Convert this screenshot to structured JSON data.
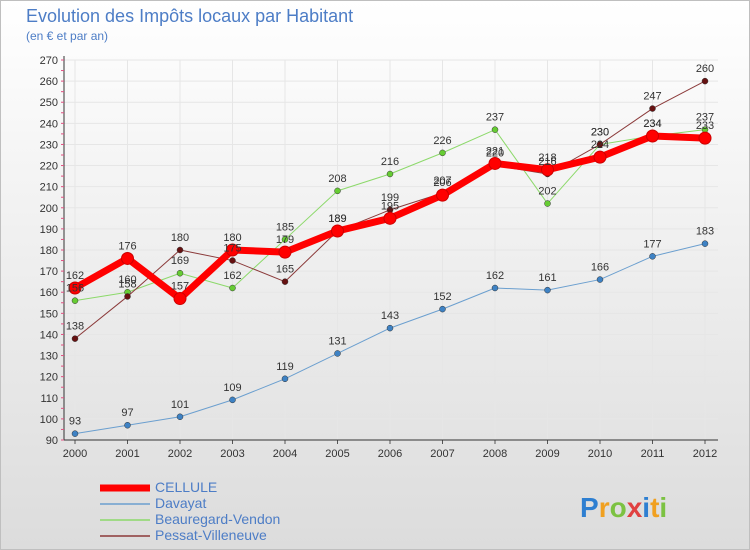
{
  "chart_data": {
    "type": "line",
    "title": "Evolution des Impôts locaux par Habitant",
    "subtitle": "(en € et par an)",
    "xlabel": "",
    "ylabel": "",
    "categories": [
      "2000",
      "2001",
      "2002",
      "2003",
      "2004",
      "2005",
      "2006",
      "2007",
      "2008",
      "2009",
      "2010",
      "2011",
      "2012"
    ],
    "ylim": [
      90,
      270
    ],
    "yticks": [
      90,
      100,
      110,
      120,
      130,
      140,
      150,
      160,
      170,
      180,
      190,
      200,
      210,
      220,
      230,
      240,
      250,
      260,
      270
    ],
    "grid": true,
    "legend": "bottom-left",
    "series": [
      {
        "name": "CELLULE",
        "color": "#ff0000",
        "marker": "#ff0000",
        "values": [
          162,
          176,
          157,
          180,
          179,
          189,
          195,
          206,
          221,
          218,
          224,
          234,
          233
        ]
      },
      {
        "name": "Davayat",
        "color": "#6b9fcf",
        "marker": "#3e82c4",
        "values": [
          93,
          97,
          101,
          109,
          119,
          131,
          143,
          152,
          162,
          161,
          166,
          177,
          183
        ]
      },
      {
        "name": "Beauregard-Vendon",
        "color": "#8cd96a",
        "marker": "#66cc33",
        "values": [
          156,
          160,
          169,
          162,
          185,
          208,
          216,
          226,
          237,
          202,
          230,
          234,
          237
        ]
      },
      {
        "name": "Pessat-Villeneuve",
        "color": "#8b3a3a",
        "marker": "#661111",
        "values": [
          138,
          158,
          180,
          175,
          165,
          189,
          199,
          207,
          220,
          216,
          230,
          247,
          260
        ]
      }
    ]
  },
  "logo": {
    "text": "Proxiti"
  }
}
